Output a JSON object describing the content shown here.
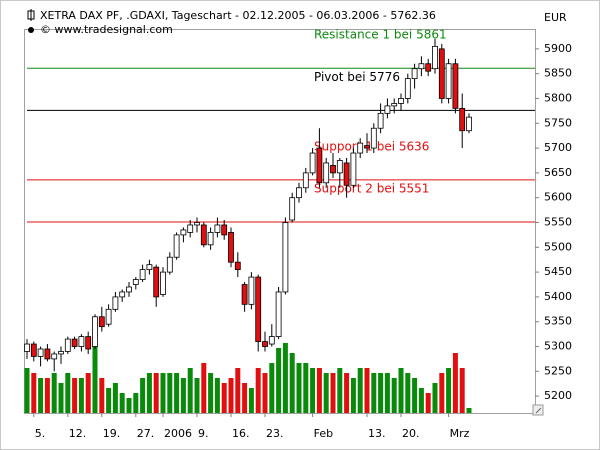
{
  "chart_data": {
    "type": "candlestick",
    "title": "XETRA DAX PF, .GDAXI, Tageschart - 02.12.2005 - 06.03.2006 - 5762.36",
    "subtitle": "© www.tradesignal.com",
    "y_axis_label": "EUR",
    "categories": [
      null,
      "5.",
      null,
      null,
      null,
      null,
      "12.",
      null,
      null,
      null,
      null,
      "19.",
      null,
      null,
      null,
      null,
      "27.",
      null,
      null,
      null,
      "2006",
      null,
      null,
      null,
      null,
      "9.",
      null,
      null,
      null,
      null,
      "16.",
      null,
      null,
      null,
      null,
      "23.",
      null,
      null,
      null,
      null,
      null,
      null,
      "Feb",
      null,
      null,
      null,
      null,
      null,
      null,
      null,
      "13.",
      null,
      null,
      null,
      null,
      "20.",
      null,
      null,
      null,
      null,
      null,
      null,
      "Mrz",
      null,
      null,
      null
    ],
    "open": [
      5290,
      5305,
      5280,
      5295,
      5275,
      5285,
      5290,
      5315,
      5300,
      5320,
      5300,
      5360,
      5345,
      5375,
      5400,
      5410,
      5425,
      5435,
      5455,
      5460,
      5405,
      5450,
      5480,
      5525,
      5530,
      5545,
      5545,
      5505,
      5530,
      5545,
      5530,
      5470,
      5425,
      5385,
      5440,
      5310,
      5305,
      5320,
      5410,
      5555,
      5600,
      5620,
      5650,
      5700,
      5630,
      5665,
      5650,
      5670,
      5625,
      5690,
      5705,
      5700,
      5740,
      5770,
      5785,
      5790,
      5800,
      5840,
      5860,
      5870,
      5860,
      5900,
      5800,
      5870,
      5780,
      5735
    ],
    "high": [
      5315,
      5310,
      5300,
      5305,
      5290,
      5300,
      5320,
      5320,
      5325,
      5330,
      5365,
      5380,
      5385,
      5410,
      5415,
      5430,
      5440,
      5465,
      5475,
      5465,
      5460,
      5490,
      5530,
      5540,
      5555,
      5560,
      5550,
      5540,
      5560,
      5555,
      5540,
      5490,
      5430,
      5450,
      5445,
      5330,
      5345,
      5420,
      5560,
      5610,
      5630,
      5660,
      5700,
      5740,
      5680,
      5690,
      5680,
      5680,
      5700,
      5720,
      5730,
      5750,
      5790,
      5800,
      5800,
      5810,
      5850,
      5870,
      5885,
      5880,
      5920,
      5910,
      5880,
      5880,
      5810,
      5770
    ],
    "low": [
      5275,
      5270,
      5260,
      5270,
      5250,
      5265,
      5285,
      5295,
      5290,
      5285,
      5295,
      5330,
      5340,
      5370,
      5390,
      5400,
      5415,
      5430,
      5445,
      5380,
      5400,
      5445,
      5475,
      5510,
      5520,
      5530,
      5500,
      5495,
      5520,
      5515,
      5460,
      5440,
      5370,
      5375,
      5290,
      5290,
      5300,
      5315,
      5405,
      5550,
      5590,
      5610,
      5645,
      5620,
      5620,
      5640,
      5620,
      5600,
      5620,
      5680,
      5690,
      5690,
      5730,
      5760,
      5770,
      5775,
      5790,
      5820,
      5845,
      5845,
      5850,
      5790,
      5790,
      5770,
      5700,
      5730
    ],
    "close": [
      5305,
      5280,
      5295,
      5275,
      5285,
      5290,
      5315,
      5300,
      5320,
      5295,
      5360,
      5340,
      5375,
      5400,
      5410,
      5420,
      5435,
      5455,
      5465,
      5400,
      5450,
      5480,
      5525,
      5535,
      5545,
      5550,
      5505,
      5530,
      5545,
      5525,
      5470,
      5455,
      5385,
      5440,
      5310,
      5300,
      5320,
      5410,
      5550,
      5600,
      5620,
      5650,
      5690,
      5630,
      5670,
      5650,
      5675,
      5625,
      5690,
      5710,
      5700,
      5740,
      5770,
      5785,
      5790,
      5800,
      5840,
      5860,
      5870,
      5855,
      5905,
      5800,
      5870,
      5780,
      5735,
      5762.36
    ],
    "volume": [
      45,
      40,
      35,
      35,
      40,
      30,
      40,
      35,
      35,
      40,
      70,
      35,
      25,
      30,
      20,
      15,
      20,
      35,
      40,
      40,
      40,
      40,
      40,
      35,
      45,
      35,
      50,
      40,
      35,
      30,
      35,
      45,
      30,
      25,
      45,
      40,
      50,
      65,
      70,
      60,
      50,
      50,
      45,
      45,
      40,
      40,
      45,
      40,
      35,
      45,
      45,
      40,
      40,
      40,
      35,
      45,
      40,
      35,
      25,
      20,
      30,
      40,
      45,
      60,
      45,
      5
    ],
    "up_color": "#0a8a0a",
    "down_color": "#e01010",
    "levels": [
      {
        "label": "Resistance 1 bei 5861",
        "value": 5861,
        "color": "#108a10"
      },
      {
        "label": "Pivot bei 5776",
        "value": 5776,
        "color": "#000000"
      },
      {
        "label": "Support 1 bei 5636",
        "value": 5636,
        "color": "#e01010"
      },
      {
        "label": "Support 2 bei 5551",
        "value": 5551,
        "color": "#e01010"
      }
    ],
    "ylim": [
      5166,
      5938
    ],
    "yticks": [
      5200,
      5250,
      5300,
      5350,
      5400,
      5450,
      5500,
      5550,
      5600,
      5650,
      5700,
      5750,
      5800,
      5850,
      5900
    ]
  }
}
